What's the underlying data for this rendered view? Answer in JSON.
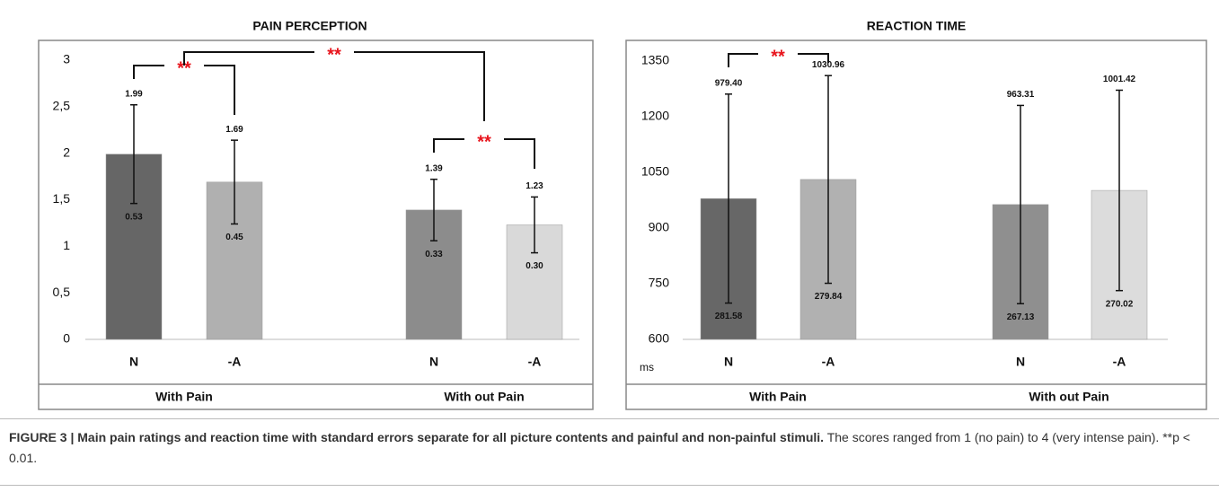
{
  "chart_data": [
    {
      "type": "bar",
      "title": "PAIN PERCEPTION",
      "categories": [
        "N",
        "-A",
        "N",
        "-A"
      ],
      "groups": [
        "With Pain",
        "With out Pain"
      ],
      "values": [
        1.99,
        1.69,
        1.39,
        1.23
      ],
      "errors": [
        0.53,
        0.45,
        0.33,
        0.3
      ],
      "error_labels": [
        "0.53",
        "0.45",
        "0.33",
        "0.30"
      ],
      "colors": [
        "#666666",
        "#b0b0b0",
        "#8c8c8c",
        "#d9d9d9"
      ],
      "ylim": [
        0,
        3
      ],
      "yticks": [
        0,
        {
          "value": 0.5,
          "label": "0,5"
        },
        1,
        {
          "value": 1.5,
          "label": "1,5"
        },
        2,
        {
          "value": 2.5,
          "label": "2,5"
        },
        3
      ],
      "significance": [
        "**",
        "**",
        "**"
      ]
    },
    {
      "type": "bar",
      "title": "REACTION TIME",
      "y_label": "ms",
      "categories": [
        "N",
        "-A",
        "N",
        "-A"
      ],
      "groups": [
        "With Pain",
        "With out Pain"
      ],
      "values": [
        979.4,
        1030.96,
        963.31,
        1001.42
      ],
      "value_labels": [
        "979.40",
        "1030.96",
        "963.31",
        "1001.42"
      ],
      "errors": [
        281.58,
        279.84,
        267.13,
        270.02
      ],
      "colors": [
        "#676767",
        "#b1b1b1",
        "#8f8f8f",
        "#dcdcdc"
      ],
      "ylim": [
        600,
        1350
      ],
      "yticks": [
        600,
        750,
        900,
        1050,
        1200,
        1350
      ],
      "significance": [
        "**"
      ]
    }
  ],
  "caption": {
    "heading": "FIGURE 3 | Main pain ratings and reaction time with standard errors separate for all picture contents and painful and non-painful stimuli.",
    "text": "The scores ranged from 1 (no pain) to 4 (very intense pain). **p < 0.01."
  }
}
